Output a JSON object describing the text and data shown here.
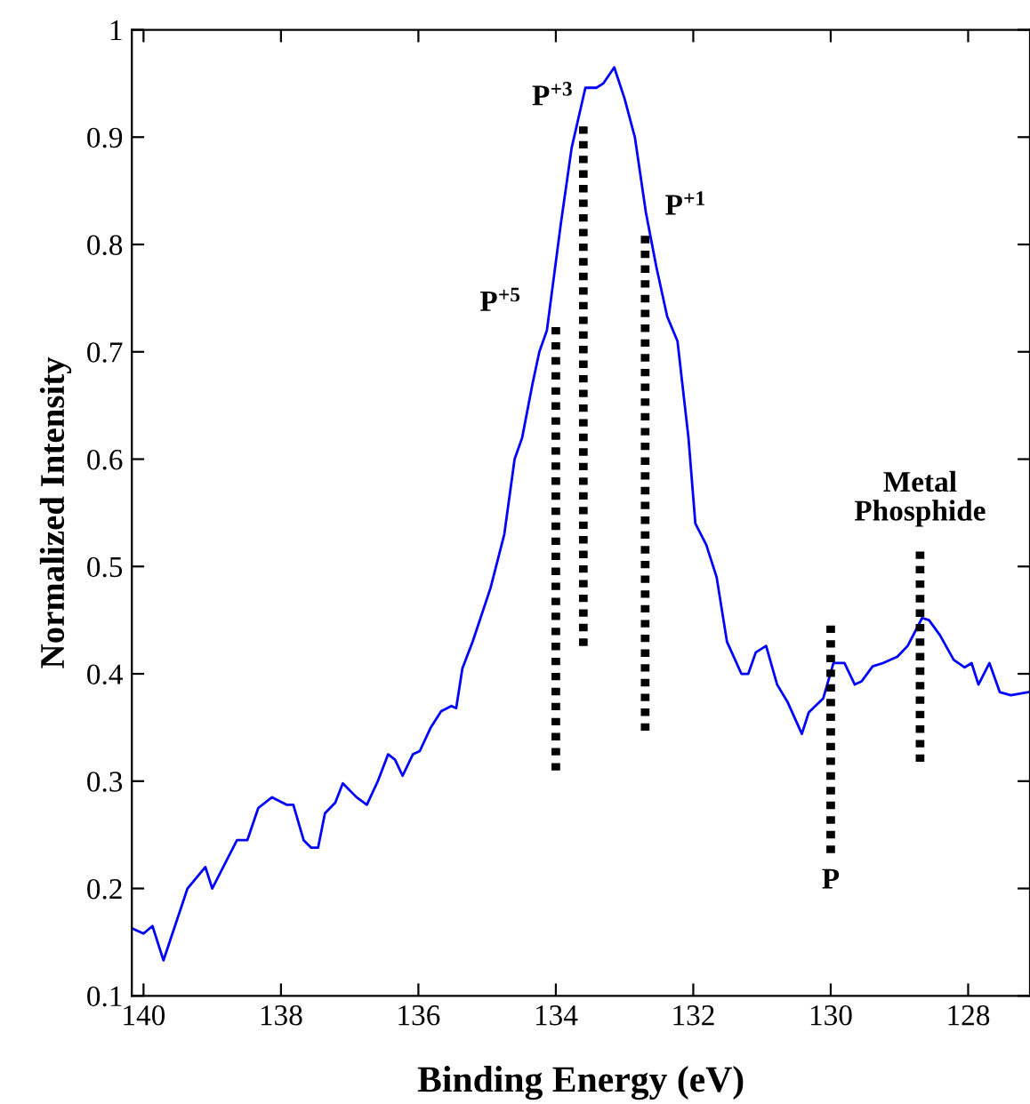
{
  "chart_data": {
    "type": "line",
    "xlabel": "Binding Energy (eV)",
    "ylabel": "Normalized Intensity",
    "xlim": [
      140.17,
      127.1
    ],
    "ylim": [
      0.1,
      1
    ],
    "xticks": [
      140,
      138,
      136,
      134,
      132,
      130,
      128
    ],
    "yticks": [
      0.1,
      0.2,
      0.3,
      0.4,
      0.5,
      0.6,
      0.7,
      0.8,
      0.9,
      1
    ],
    "grid": false,
    "marker": "none",
    "series": [
      {
        "color": "#0000ff",
        "line_style": "solid",
        "x": [
          140.17,
          140.0,
          139.87,
          139.71,
          139.36,
          139.1,
          139.0,
          138.64,
          138.49,
          138.33,
          138.13,
          137.92,
          137.82,
          137.67,
          137.56,
          137.46,
          137.36,
          137.21,
          137.1,
          136.9,
          136.75,
          136.59,
          136.44,
          136.34,
          136.23,
          136.08,
          135.98,
          135.82,
          135.67,
          135.52,
          135.45,
          135.36,
          135.21,
          134.95,
          134.75,
          134.6,
          134.49,
          134.34,
          134.24,
          134.13,
          133.93,
          133.77,
          133.57,
          133.41,
          133.31,
          133.15,
          133.0,
          132.85,
          132.69,
          132.54,
          132.38,
          132.23,
          132.07,
          131.97,
          131.81,
          131.66,
          131.51,
          131.3,
          131.2,
          131.09,
          130.94,
          130.78,
          130.63,
          130.42,
          130.32,
          130.11,
          129.96,
          129.8,
          129.65,
          129.55,
          129.39,
          129.24,
          129.03,
          128.88,
          128.67,
          128.57,
          128.41,
          128.21,
          128.05,
          127.95,
          127.85,
          127.69,
          127.54,
          127.38,
          127.12
        ],
        "values": [
          0.163,
          0.158,
          0.165,
          0.133,
          0.2,
          0.22,
          0.2,
          0.245,
          0.245,
          0.275,
          0.285,
          0.278,
          0.278,
          0.245,
          0.238,
          0.238,
          0.27,
          0.28,
          0.298,
          0.285,
          0.278,
          0.3,
          0.325,
          0.32,
          0.305,
          0.325,
          0.328,
          0.35,
          0.365,
          0.37,
          0.368,
          0.405,
          0.43,
          0.48,
          0.53,
          0.6,
          0.62,
          0.67,
          0.7,
          0.72,
          0.818,
          0.89,
          0.946,
          0.946,
          0.95,
          0.965,
          0.936,
          0.9,
          0.83,
          0.78,
          0.733,
          0.71,
          0.62,
          0.54,
          0.52,
          0.49,
          0.43,
          0.4,
          0.4,
          0.42,
          0.426,
          0.39,
          0.374,
          0.344,
          0.364,
          0.377,
          0.41,
          0.41,
          0.39,
          0.393,
          0.407,
          0.41,
          0.416,
          0.426,
          0.452,
          0.45,
          0.436,
          0.413,
          0.406,
          0.41,
          0.39,
          0.41,
          0.383,
          0.38,
          0.383
        ]
      },
      {
        "color": "#000000",
        "line_style": "dotted",
        "x": [
          134.0,
          134.0
        ],
        "values": [
          0.31,
          0.723
        ]
      },
      {
        "color": "#000000",
        "line_style": "dotted",
        "x": [
          133.6,
          133.6
        ],
        "values": [
          0.426,
          0.91
        ]
      },
      {
        "color": "#000000",
        "line_style": "dotted",
        "x": [
          132.7,
          132.7
        ],
        "values": [
          0.347,
          0.808
        ]
      },
      {
        "color": "#000000",
        "line_style": "dotted",
        "x": [
          130.0,
          130.0
        ],
        "values": [
          0.233,
          0.445
        ]
      },
      {
        "color": "#000000",
        "line_style": "dotted",
        "x": [
          128.7,
          128.7
        ],
        "values": [
          0.318,
          0.514
        ]
      }
    ],
    "annotations": [
      {
        "text": "P$^{+5}$",
        "x": 134.0,
        "y": 0.723
      },
      {
        "text": "P$^{+3}$",
        "x": 133.6,
        "y": 0.91
      },
      {
        "text": "P$^{+1}$",
        "x": 132.7,
        "y": 0.808
      },
      {
        "text": "P",
        "x": 130.0,
        "y": 0.233
      },
      {
        "text": "Metal\nPhosphide",
        "x": 128.7,
        "y": 0.514
      }
    ]
  }
}
